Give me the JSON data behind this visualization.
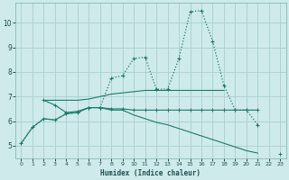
{
  "xlabel": "Humidex (Indice chaleur)",
  "bg_color": "#ceeaea",
  "grid_color": "#aacfcf",
  "line_color": "#1a7a6e",
  "xlim": [
    -0.5,
    23.5
  ],
  "ylim": [
    4.5,
    10.8
  ],
  "xticks": [
    0,
    1,
    2,
    3,
    4,
    5,
    6,
    7,
    8,
    9,
    10,
    11,
    12,
    13,
    14,
    15,
    16,
    17,
    18,
    19,
    20,
    21,
    22,
    23
  ],
  "yticks": [
    5,
    6,
    7,
    8,
    9,
    10
  ],
  "s1_x": [
    0,
    1,
    2,
    3,
    4,
    5,
    6,
    7,
    8,
    9,
    10,
    11,
    12,
    13,
    14,
    15,
    16,
    17,
    18,
    19,
    20,
    21
  ],
  "s1_y": [
    5.1,
    5.75,
    6.1,
    6.05,
    6.3,
    6.35,
    6.55,
    6.55,
    7.75,
    7.85,
    8.55,
    8.6,
    7.3,
    7.3,
    8.55,
    10.45,
    10.5,
    9.25,
    7.45,
    6.45,
    6.45,
    5.85
  ],
  "s2_x": [
    2,
    3,
    4,
    5,
    6,
    7,
    8,
    9,
    10,
    11,
    12,
    13,
    14,
    15,
    16,
    17,
    18
  ],
  "s2_y": [
    6.85,
    6.85,
    6.85,
    6.85,
    6.9,
    7.0,
    7.1,
    7.15,
    7.2,
    7.25,
    7.25,
    7.25,
    7.25,
    7.25,
    7.25,
    7.25,
    7.25
  ],
  "s3_x": [
    2,
    3,
    4,
    5,
    6,
    7,
    8,
    9,
    10,
    11,
    12,
    13,
    14,
    15,
    16,
    17,
    18,
    19,
    20,
    21,
    22
  ],
  "s3_y": [
    6.85,
    6.65,
    6.35,
    6.4,
    6.55,
    6.55,
    6.5,
    6.5,
    6.45,
    6.45,
    6.45,
    6.45,
    6.45,
    6.45,
    6.45,
    6.45,
    6.45,
    6.45,
    6.45,
    6.45,
    null
  ],
  "s4_x": [
    0,
    1,
    2,
    3,
    4,
    5,
    6,
    7,
    8,
    9,
    10,
    11,
    12,
    13,
    14,
    15,
    16,
    17,
    18,
    19,
    20,
    21,
    22,
    23
  ],
  "s4_y": [
    5.1,
    5.75,
    6.1,
    6.05,
    6.3,
    6.35,
    6.55,
    6.55,
    6.45,
    6.45,
    6.25,
    6.1,
    5.95,
    5.85,
    5.7,
    5.55,
    5.4,
    5.25,
    5.1,
    4.95,
    4.8,
    4.7,
    null,
    4.65
  ]
}
